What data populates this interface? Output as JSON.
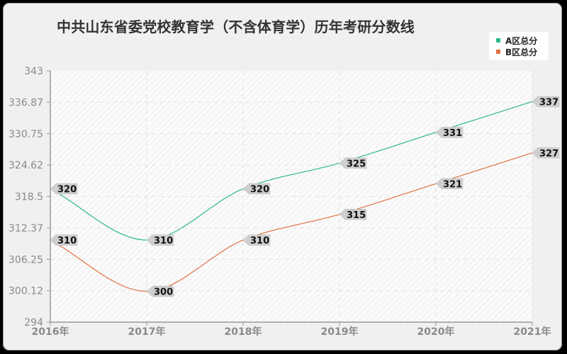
{
  "chart_data": {
    "type": "line",
    "title": "中共山东省委党校教育学（不含体育学）历年考研分数线",
    "xlabel": "",
    "ylabel": "",
    "categories": [
      "2016年",
      "2017年",
      "2018年",
      "2019年",
      "2020年",
      "2021年"
    ],
    "series": [
      {
        "name": "A区总分",
        "color": "#2db78f",
        "values": [
          320,
          310,
          320,
          325,
          331,
          337
        ]
      },
      {
        "name": "B区总分",
        "color": "#e2703f",
        "values": [
          310,
          300,
          310,
          315,
          321,
          327
        ]
      }
    ],
    "ylim": [
      294,
      343
    ],
    "yticks": [
      "343",
      "336.87",
      "330.75",
      "324.62",
      "318.5",
      "312.37",
      "306.25",
      "300.12",
      "294"
    ],
    "grid": true,
    "legend_position": "top-right",
    "smooth": true
  },
  "legend": {
    "a_label": "A区总分",
    "b_label": "B区总分",
    "a_color": "#2db78f",
    "b_color": "#e2703f"
  }
}
